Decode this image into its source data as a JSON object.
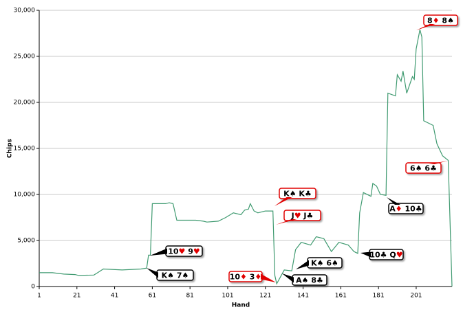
{
  "chart_data": {
    "type": "line",
    "x_label": "Hand",
    "y_label": "Chips",
    "x": [
      1,
      8,
      14,
      20,
      22,
      30,
      32,
      35,
      45,
      55,
      58,
      59,
      60,
      61,
      68,
      70,
      72,
      74,
      84,
      88,
      90,
      96,
      100,
      104,
      108,
      110,
      112,
      113,
      115,
      117,
      121,
      125,
      126,
      127,
      131,
      135,
      137,
      140,
      145,
      148,
      152,
      156,
      160,
      165,
      168,
      170,
      171,
      173,
      177,
      178,
      180,
      182,
      185,
      186,
      190,
      191,
      193,
      194,
      196,
      199,
      200,
      201,
      203,
      204,
      205,
      210,
      212,
      215,
      218,
      220
    ],
    "series": [
      {
        "name": "Chips",
        "color": "#3f9a70",
        "values": [
          1500,
          1500,
          1350,
          1300,
          1200,
          1250,
          1500,
          1900,
          1800,
          1900,
          2000,
          3400,
          3400,
          9000,
          9000,
          9100,
          9000,
          7200,
          7200,
          7100,
          7000,
          7100,
          7500,
          8000,
          7800,
          8300,
          8400,
          9000,
          8200,
          8000,
          8200,
          8200,
          1200,
          300,
          1800,
          1700,
          4000,
          4800,
          4500,
          5400,
          5200,
          3800,
          4800,
          4500,
          3800,
          3600,
          8000,
          10200,
          9800,
          11200,
          10900,
          10000,
          9900,
          21000,
          20700,
          23000,
          22300,
          23400,
          21000,
          22800,
          22500,
          25800,
          27900,
          27100,
          18000,
          17500,
          15500,
          14200,
          13700,
          0
        ]
      }
    ],
    "xlim": [
      1,
      220
    ],
    "ylim": [
      0,
      30000
    ],
    "xticks": [
      1,
      21,
      41,
      61,
      81,
      101,
      121,
      141,
      161,
      181,
      201
    ],
    "yticks": [
      0,
      {
        "value": 5000,
        "label": "5,000"
      },
      {
        "value": 10000,
        "label": "10,000"
      },
      {
        "value": 15000,
        "label": "15,000"
      },
      {
        "value": 20000,
        "label": "20,000"
      },
      {
        "value": 25000,
        "label": "25,000"
      },
      {
        "value": 30000,
        "label": "30,000"
      }
    ],
    "grid": true,
    "annotations": [
      {
        "text": "10♥ 9♥",
        "highlight": false
      },
      {
        "text": "K♠ 7♠",
        "highlight": false
      },
      {
        "text": "K♠ K♣",
        "highlight": true
      },
      {
        "text": "J♥ J♣",
        "highlight": true
      },
      {
        "text": "10♦ 3♦",
        "highlight": true
      },
      {
        "text": "A♠ 8♣",
        "highlight": false
      },
      {
        "text": "K♠ 6♠",
        "highlight": false
      },
      {
        "text": "10♣ Q♥",
        "highlight": false
      },
      {
        "text": "A♦ 10♣",
        "highlight": false
      },
      {
        "text": "8♦ 8♠",
        "highlight": true
      },
      {
        "text": "6♠ 6♣",
        "highlight": true
      }
    ]
  }
}
